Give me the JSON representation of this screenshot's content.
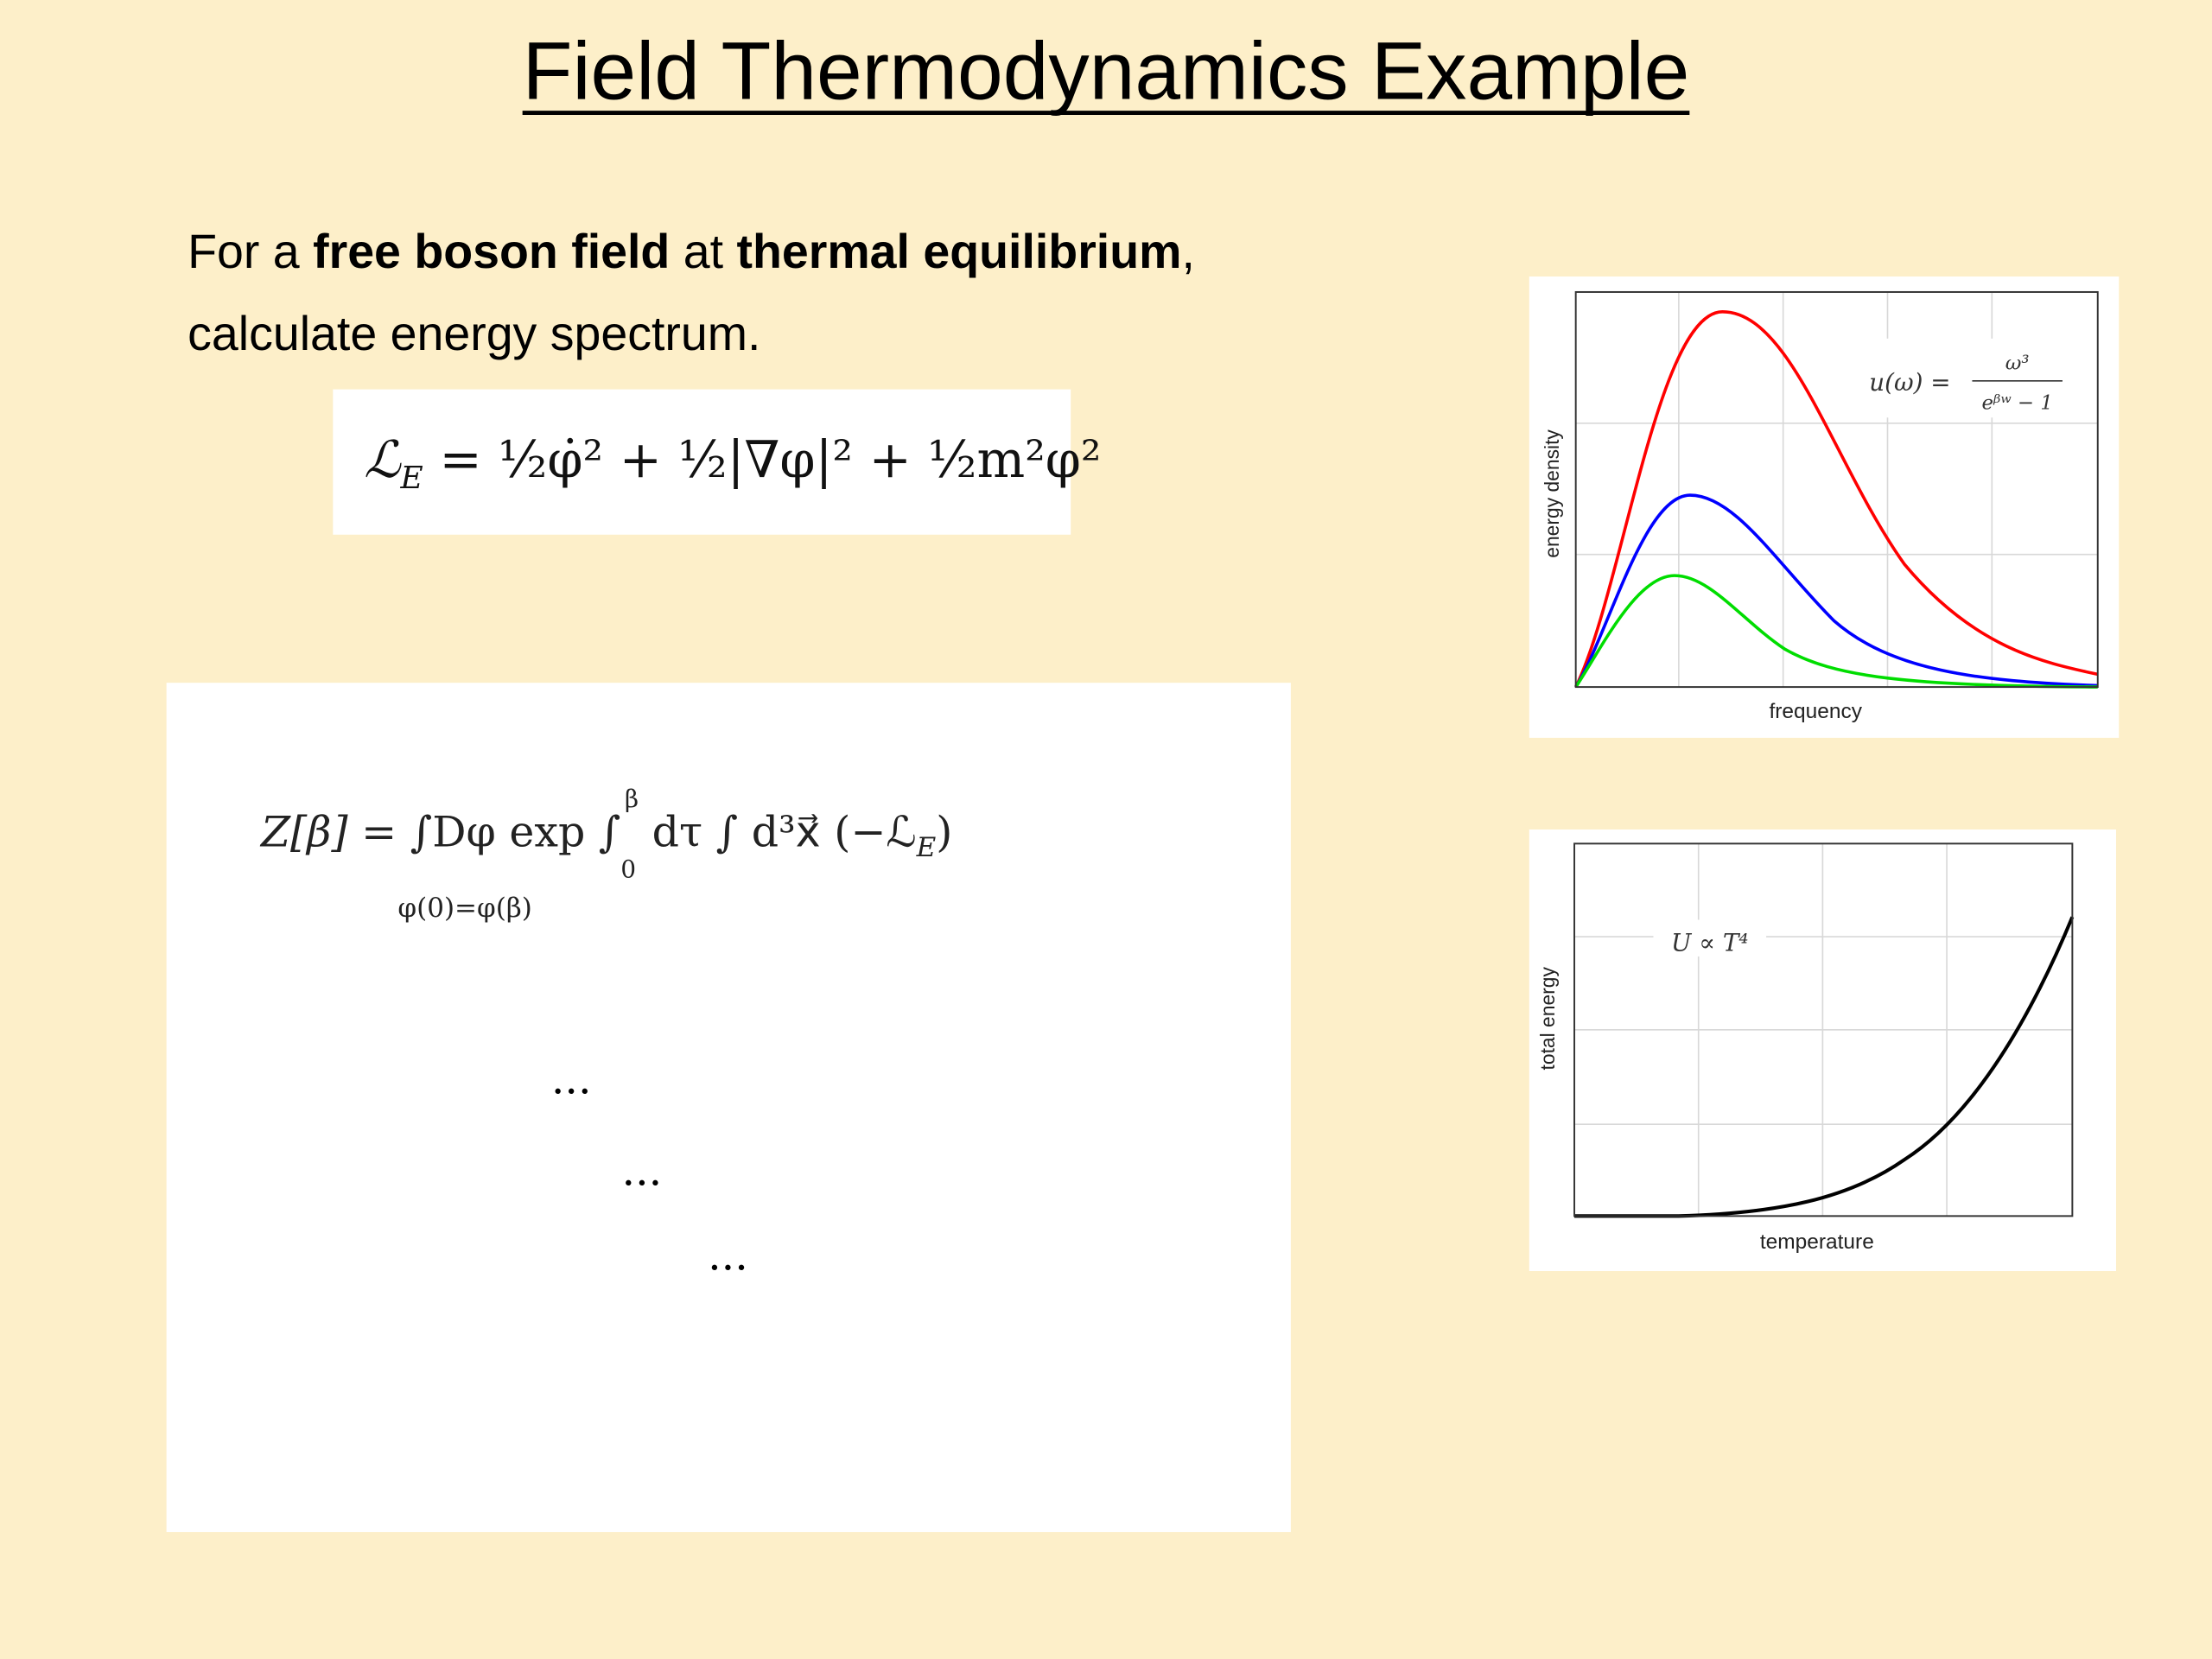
{
  "title": "Field Thermodynamics Example",
  "intro": {
    "line1": [
      "For a ",
      "free boson field",
      " at ",
      "thermal equilibrium",
      ","
    ],
    "line2": "calculate energy spectrum."
  },
  "lagrangian": {
    "symbol": "ℒ",
    "subscript": "E",
    "rhs": " = ½φ̇² + ½|∇φ|² + ½m²φ²"
  },
  "partition": {
    "lhs": "Z[β] = ",
    "integrand": "∫Dφ exp ∫",
    "lower": "0",
    "upper": "β",
    "rest": " dτ ∫ d³x⃗ (−ℒ",
    "subscript": "E",
    "close": ")",
    "constraint": "φ(0)=φ(β)"
  },
  "ellipses": [
    "...",
    "...",
    "..."
  ],
  "spectrum_plot": {
    "x_label": "frequency",
    "y_label": "energy density",
    "formula": {
      "lhs": "u(ω) =",
      "numerator": "ω³",
      "denominator": "eᵝʷ − 1"
    }
  },
  "energy_plot": {
    "x_label": "temperature",
    "y_label": "total energy",
    "formula": "U ∝ T⁴"
  }
}
